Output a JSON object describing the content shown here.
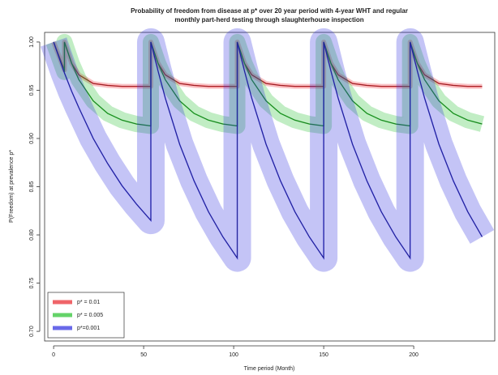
{
  "chart_data": {
    "type": "line",
    "title": [
      "Probability of freedom from disease at p* over 20 year period with 4-year WHT and regular",
      "monthly part-herd testing through slaughterhouse inspection"
    ],
    "x_label": "Time period (Month)",
    "y_label": "P(Freedom) at prevalence p*",
    "x": [
      0,
      6,
      6,
      10,
      14,
      22,
      30,
      38,
      46,
      54,
      54,
      58,
      62,
      70,
      78,
      86,
      94,
      102,
      102,
      106,
      110,
      118,
      126,
      134,
      142,
      150,
      150,
      154,
      158,
      166,
      174,
      182,
      190,
      198,
      198,
      202,
      206,
      214,
      222,
      230,
      238
    ],
    "series": [
      {
        "name": "p* = 0.01",
        "color": "#e8222a",
        "values": [
          1.0,
          0.971,
          1.0,
          0.978,
          0.966,
          0.957,
          0.955,
          0.954,
          0.954,
          0.954,
          1.0,
          0.978,
          0.966,
          0.957,
          0.955,
          0.954,
          0.954,
          0.954,
          1.0,
          0.978,
          0.966,
          0.957,
          0.955,
          0.954,
          0.954,
          0.954,
          1.0,
          0.978,
          0.966,
          0.957,
          0.955,
          0.954,
          0.954,
          0.954,
          1.0,
          0.978,
          0.966,
          0.957,
          0.955,
          0.954,
          0.954
        ]
      },
      {
        "name": "p* = 0.005",
        "color": "#22c02a",
        "values": [
          1.0,
          0.969,
          1.0,
          0.978,
          0.961,
          0.939,
          0.926,
          0.919,
          0.915,
          0.913,
          1.0,
          0.978,
          0.961,
          0.939,
          0.926,
          0.919,
          0.915,
          0.913,
          1.0,
          0.978,
          0.961,
          0.939,
          0.926,
          0.919,
          0.915,
          0.913,
          1.0,
          0.978,
          0.961,
          0.939,
          0.926,
          0.919,
          0.915,
          0.913,
          1.0,
          0.978,
          0.961,
          0.939,
          0.926,
          0.919,
          0.915
        ]
      },
      {
        "name": "p*=0.001",
        "color": "#2a2ae0",
        "values": [
          1.0,
          0.968,
          0.968,
          0.949,
          0.932,
          0.9,
          0.874,
          0.851,
          0.832,
          0.815,
          1.0,
          0.97,
          0.942,
          0.894,
          0.856,
          0.824,
          0.798,
          0.776,
          1.0,
          0.97,
          0.942,
          0.894,
          0.856,
          0.824,
          0.798,
          0.776,
          1.0,
          0.97,
          0.942,
          0.894,
          0.856,
          0.824,
          0.798,
          0.776,
          1.0,
          0.97,
          0.942,
          0.894,
          0.856,
          0.824,
          0.798
        ]
      }
    ],
    "xlim": [
      -5,
      245
    ],
    "ylim": [
      0.69,
      1.01
    ],
    "xticks": [
      0,
      50,
      100,
      150,
      200
    ],
    "yticks": [
      {
        "value": 1.0,
        "label": "1.00"
      },
      {
        "value": 0.95,
        "label": "0.95"
      },
      {
        "value": 0.9,
        "label": "0.90"
      },
      {
        "value": 0.85,
        "label": "0.85"
      },
      {
        "value": 0.8,
        "label": "0.80"
      },
      {
        "value": 0.75,
        "label": "0.75"
      },
      {
        "value": 0.7,
        "label": "0.70"
      }
    ],
    "legend": "lower left",
    "grid": false
  }
}
